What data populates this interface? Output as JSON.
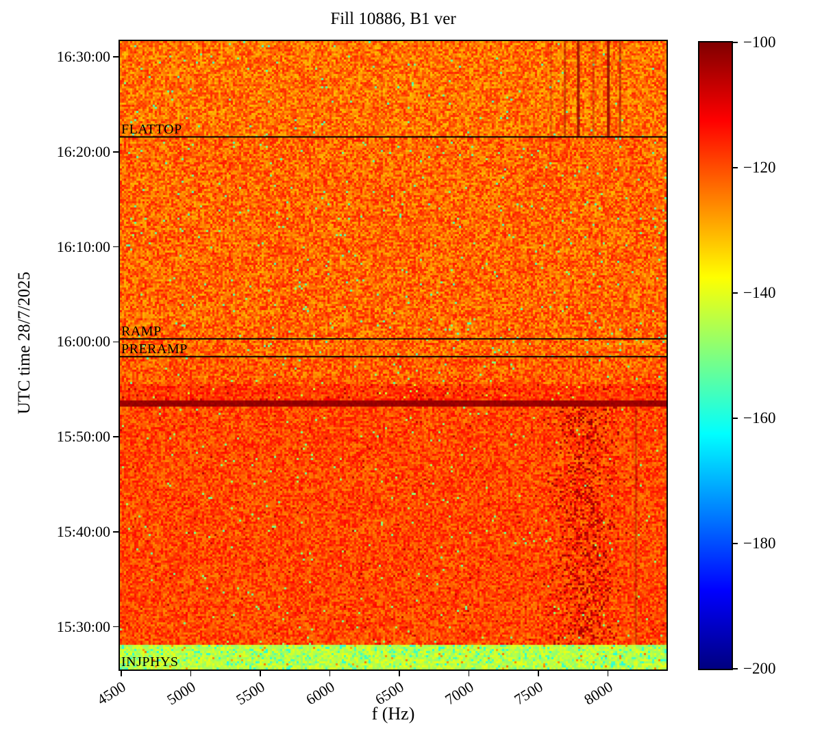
{
  "chart_data": {
    "type": "heatmap",
    "subtype": "spectrogram",
    "title": "Fill 10886, B1 ver",
    "xlabel": "f (Hz)",
    "ylabel": "UTC time 28/7/2025",
    "grid": false,
    "x_range": [
      4490,
      8420
    ],
    "x_ticks": [
      {
        "value": 4500,
        "label": "4500"
      },
      {
        "value": 5000,
        "label": "5000"
      },
      {
        "value": 5500,
        "label": "5500"
      },
      {
        "value": 6000,
        "label": "6000"
      },
      {
        "value": 6500,
        "label": "6500"
      },
      {
        "value": 7000,
        "label": "7000"
      },
      {
        "value": 7500,
        "label": "7500"
      },
      {
        "value": 8000,
        "label": "8000"
      }
    ],
    "time_top": "16:31:40",
    "time_bottom": "15:25:30",
    "y_ticks": [
      {
        "time": "16:30:00",
        "label": "16:30:00"
      },
      {
        "time": "16:20:00",
        "label": "16:20:00"
      },
      {
        "time": "16:10:00",
        "label": "16:10:00"
      },
      {
        "time": "16:00:00",
        "label": "16:00:00"
      },
      {
        "time": "15:50:00",
        "label": "15:50:00"
      },
      {
        "time": "15:40:00",
        "label": "15:40:00"
      },
      {
        "time": "15:30:00",
        "label": "15:30:00"
      }
    ],
    "colorbar": {
      "vmin": -200,
      "vmax": -100,
      "colormap": "jet",
      "ticks": [
        {
          "value": -100,
          "label": "−100"
        },
        {
          "value": -120,
          "label": "−120"
        },
        {
          "value": -140,
          "label": "−140"
        },
        {
          "value": -160,
          "label": "−160"
        },
        {
          "value": -180,
          "label": "−180"
        },
        {
          "value": -200,
          "label": "−200"
        }
      ],
      "gradient_top_to_bottom": [
        {
          "stop": 0.0,
          "color": "#800000"
        },
        {
          "stop": 0.125,
          "color": "#ff0000"
        },
        {
          "stop": 0.375,
          "color": "#ffff00"
        },
        {
          "stop": 0.625,
          "color": "#00ffff"
        },
        {
          "stop": 0.875,
          "color": "#0000ff"
        },
        {
          "stop": 1.0,
          "color": "#000080"
        }
      ]
    },
    "events": [
      {
        "label": "FLATTOP",
        "time": "16:21:35",
        "draw_line": true
      },
      {
        "label": "RAMP",
        "time": "16:00:20",
        "draw_line": true
      },
      {
        "label": "PRERAMP",
        "time": "15:58:25",
        "draw_line": true
      },
      {
        "label": "INJPHYS",
        "time": "15:25:30",
        "draw_line": false
      }
    ],
    "line_color": "#000000",
    "regions": [
      {
        "from": "16:31:40",
        "to": "16:21:35",
        "base_db": -123.5,
        "noise_db": 8.0,
        "speckles": [
          {
            "p": 0.012,
            "dv": -30
          }
        ]
      },
      {
        "from": "16:21:35",
        "to": "15:58:25",
        "base_db": -122.5,
        "noise_db": 8.0,
        "speckles": [
          {
            "p": 0.01,
            "dv": -30
          }
        ]
      },
      {
        "from": "15:58:25",
        "to": "15:55:30",
        "base_db": -121.5,
        "noise_db": 7.5,
        "speckles": [
          {
            "p": 0.01,
            "dv": -30
          }
        ]
      },
      {
        "from": "15:55:30",
        "to": "15:53:45",
        "base_db": -118.0,
        "noise_db": 6.0,
        "speckles": [
          {
            "p": 0.05,
            "dv": 11
          },
          {
            "p": 0.01,
            "dv": -25
          }
        ]
      },
      {
        "from": "15:53:45",
        "to": "15:53:05",
        "base_db": -102.5,
        "noise_db": 1.5,
        "speckles": []
      },
      {
        "from": "15:53:05",
        "to": "15:28:10",
        "base_db": -119.5,
        "noise_db": 6.5,
        "speckles": [
          {
            "p": 0.008,
            "dv": 12
          },
          {
            "p": 0.008,
            "dv": -30
          }
        ]
      },
      {
        "from": "15:28:10",
        "to": "15:25:30",
        "base_db": -144.0,
        "noise_db": 5.0,
        "speckles": [
          {
            "p": 0.1,
            "dv": -13
          },
          {
            "p": 0.02,
            "dv": 18
          }
        ]
      }
    ],
    "features": {
      "vertical_streaks": [
        {
          "f": 7590,
          "from": "16:31:40",
          "to": "16:21:35",
          "alpha": 0.22,
          "width": 3,
          "color": "#8b0000"
        },
        {
          "f": 7690,
          "from": "16:31:40",
          "to": "16:21:35",
          "alpha": 0.45,
          "width": 3,
          "color": "#8b0000"
        },
        {
          "f": 7786,
          "from": "16:31:40",
          "to": "16:21:35",
          "alpha": 0.75,
          "width": 4,
          "color": "#8b0000"
        },
        {
          "f": 7894,
          "from": "16:31:40",
          "to": "16:21:35",
          "alpha": 0.28,
          "width": 3,
          "color": "#8b0000"
        },
        {
          "f": 8002,
          "from": "16:31:40",
          "to": "16:21:35",
          "alpha": 0.8,
          "width": 4,
          "color": "#8b0000"
        },
        {
          "f": 8086,
          "from": "16:31:40",
          "to": "16:21:35",
          "alpha": 0.5,
          "width": 3,
          "color": "#8b0000"
        },
        {
          "f": 6370,
          "from": "16:31:40",
          "to": "16:00:20",
          "alpha": 0.1,
          "width": 4,
          "color": "#cc3300"
        },
        {
          "f": 7430,
          "from": "16:31:40",
          "to": "16:00:20",
          "alpha": 0.08,
          "width": 4,
          "color": "#cc3300"
        },
        {
          "f": 8200,
          "from": "15:53:05",
          "to": "15:28:10",
          "alpha": 0.28,
          "width": 3,
          "color": "#660000"
        }
      ],
      "speckle_cluster": {
        "f_center": 7830,
        "f_sigma": 170,
        "from": "15:53:05",
        "to": "15:28:10",
        "p_max": 0.3,
        "db": -106
      }
    },
    "noise_seed": 987654321
  }
}
